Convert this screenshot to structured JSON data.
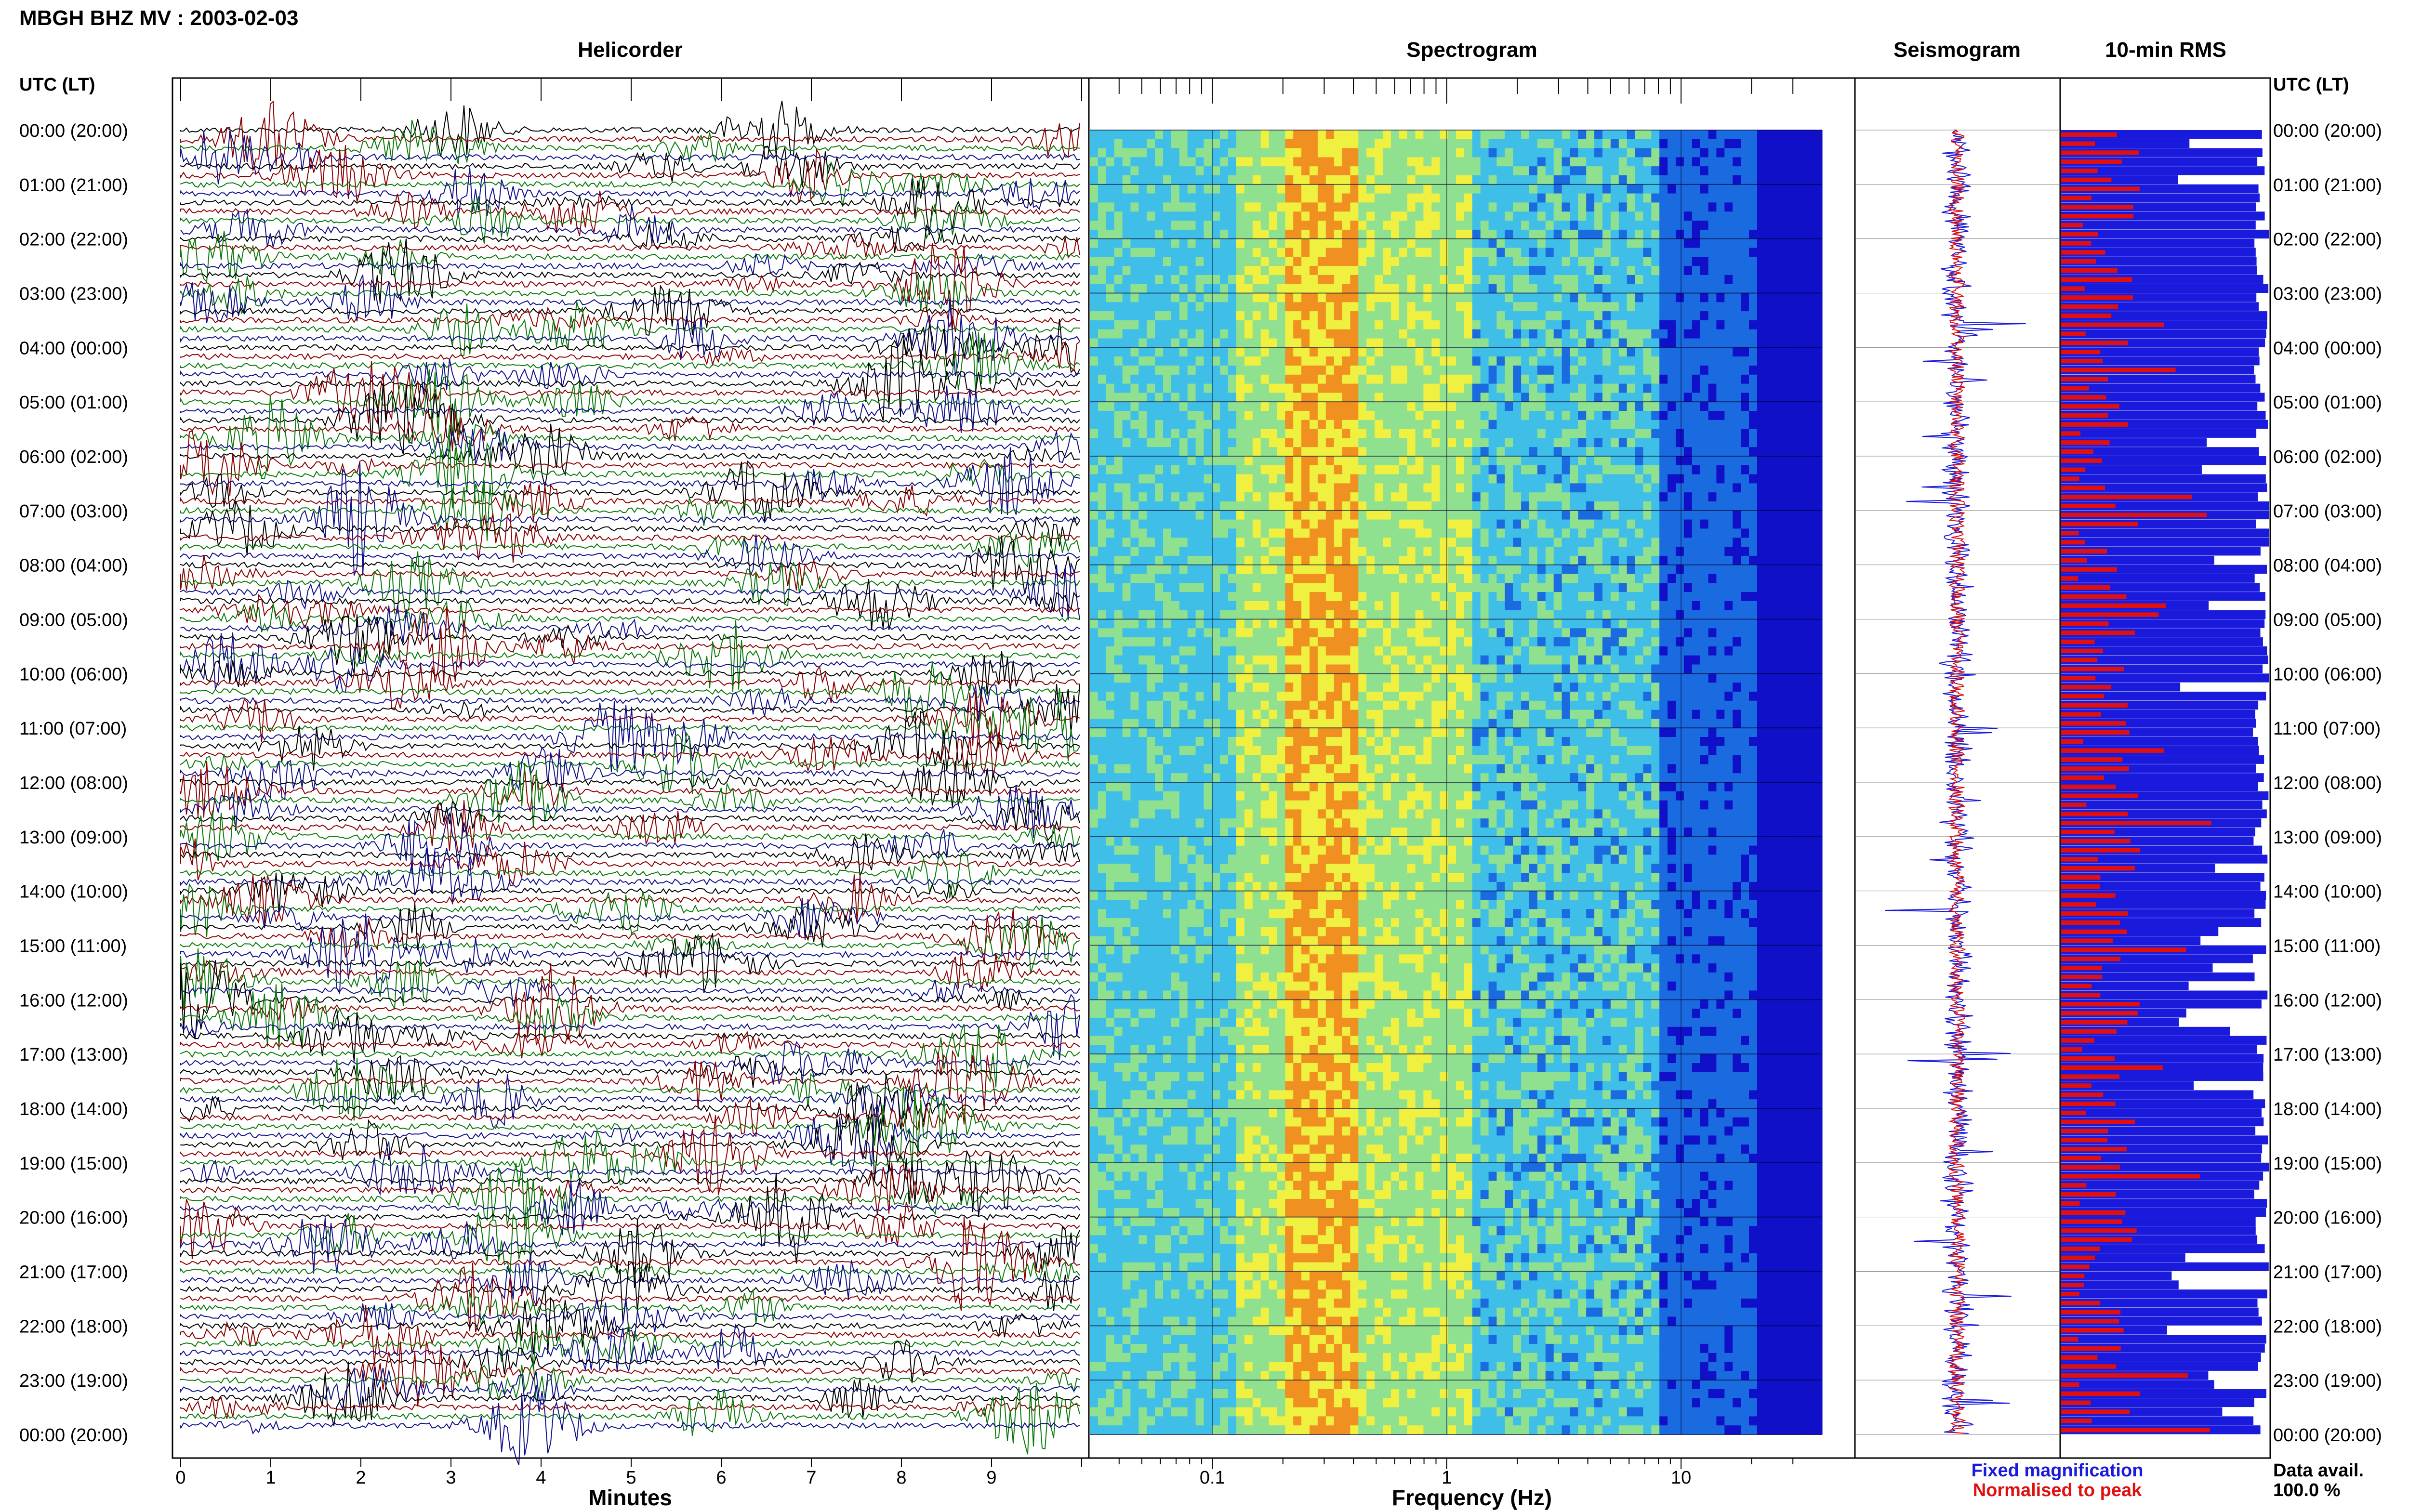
{
  "header": {
    "title": "MBGH BHZ MV : 2003-02-03"
  },
  "panels": {
    "helicorder": "Helicorder",
    "spectrogram": "Spectrogram",
    "seismogram": "Seismogram",
    "rms": "10-min RMS"
  },
  "axis_headers": {
    "left": "UTC (LT)",
    "right": "UTC (LT)"
  },
  "time_labels": [
    "00:00 (20:00)",
    "01:00 (21:00)",
    "02:00 (22:00)",
    "03:00 (23:00)",
    "04:00 (00:00)",
    "05:00 (01:00)",
    "06:00 (02:00)",
    "07:00 (03:00)",
    "08:00 (04:00)",
    "09:00 (05:00)",
    "10:00 (06:00)",
    "11:00 (07:00)",
    "12:00 (08:00)",
    "13:00 (09:00)",
    "14:00 (10:00)",
    "15:00 (11:00)",
    "16:00 (12:00)",
    "17:00 (13:00)",
    "18:00 (14:00)",
    "19:00 (15:00)",
    "20:00 (16:00)",
    "21:00 (17:00)",
    "22:00 (18:00)",
    "23:00 (19:00)",
    "00:00 (20:00)"
  ],
  "xaxes": {
    "helicorder_label": "Minutes",
    "helicorder_ticks": [
      "0",
      "1",
      "2",
      "3",
      "4",
      "5",
      "6",
      "7",
      "8",
      "9"
    ],
    "spectrogram_label": "Frequency (Hz)",
    "spectrogram_ticks": [
      "0.1",
      "1",
      "10"
    ]
  },
  "legend": {
    "fixed": "Fixed magnification",
    "normalised": "Normalised to peak",
    "fixed_color": "#1a1adc",
    "normalised_color": "#e01010"
  },
  "data_availability": {
    "label": "Data avail.",
    "value": "100.0 %"
  },
  "colors": {
    "helicorder_traces": [
      "#000000",
      "#8b0000",
      "#0a7a0a",
      "#10108c"
    ],
    "spectrogram_scale": [
      "#1010c8",
      "#1a6ae0",
      "#3fbfe8",
      "#8fe08f",
      "#f0f040",
      "#f09020",
      "#d02020"
    ],
    "rms_fixed": "#1a1adc",
    "rms_normalised": "#e01010"
  },
  "chart_data": [
    {
      "type": "line",
      "title": "Helicorder",
      "xlabel": "Minutes",
      "ylabel": "UTC (LT)",
      "xlim": [
        0,
        10
      ],
      "rows_per_hour": 6,
      "series_colors_cycle": [
        "black",
        "darkred",
        "green",
        "blue"
      ],
      "grid": true
    },
    {
      "type": "heatmap",
      "title": "Spectrogram",
      "xlabel": "Frequency (Hz)",
      "xscale": "log",
      "xlim": [
        0.03,
        40
      ],
      "tick_labels": [
        "0.1",
        "1",
        "10"
      ],
      "peak_energy_band_hz": [
        0.2,
        0.35
      ]
    },
    {
      "type": "line",
      "title": "Seismogram",
      "series": [
        {
          "name": "Fixed magnification"
        },
        {
          "name": "Normalised to peak"
        }
      ]
    },
    {
      "type": "bar",
      "title": "10-min RMS",
      "orientation": "horizontal",
      "bins": 144,
      "series": [
        {
          "name": "Fixed magnification"
        },
        {
          "name": "Normalised to peak"
        }
      ]
    }
  ]
}
